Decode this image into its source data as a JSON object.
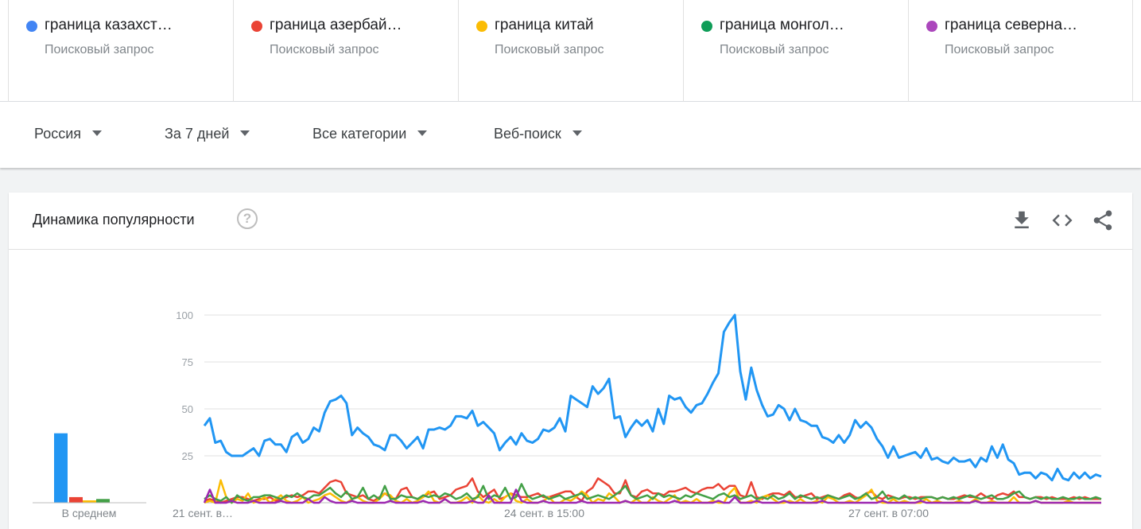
{
  "terms": [
    {
      "name": "граница казахст…",
      "sub": "Поисковый запрос",
      "color": "#4285f4"
    },
    {
      "name": "граница азербай…",
      "sub": "Поисковый запрос",
      "color": "#ea4335"
    },
    {
      "name": "граница китай",
      "sub": "Поисковый запрос",
      "color": "#fbbc04"
    },
    {
      "name": "граница монгол…",
      "sub": "Поисковый запрос",
      "color": "#0f9d58"
    },
    {
      "name": "граница северна…",
      "sub": "Поисковый запрос",
      "color": "#ab47bc"
    }
  ],
  "filters": {
    "region": "Россия",
    "period": "За 7 дней",
    "category": "Все категории",
    "search_type": "Веб-поиск"
  },
  "card": {
    "title": "Динамика популярности",
    "help_icon": "?",
    "icons": [
      "download-icon",
      "embed-code-icon",
      "share-icon"
    ]
  },
  "chart_data": {
    "type": "line",
    "title": "",
    "ylim": [
      0,
      100
    ],
    "yticks": [
      25,
      50,
      75,
      100
    ],
    "x_labels": [
      "21 сент. в…",
      "24 сент. в 15:00",
      "27 сент. в 07:00"
    ],
    "average_label": "В среднем",
    "averages": [
      {
        "color": "#2196f3",
        "value": 37
      },
      {
        "color": "#ea4335",
        "value": 3
      },
      {
        "color": "#fbbc04",
        "value": 1
      },
      {
        "color": "#43a047",
        "value": 2
      },
      {
        "color": "#9c27b0",
        "value": 0
      }
    ],
    "series": [
      {
        "color": "#2196f3",
        "values": [
          41,
          45,
          32,
          33,
          27,
          25,
          25,
          25,
          27,
          29,
          25,
          33,
          34,
          31,
          31,
          27,
          35,
          37,
          32,
          34,
          40,
          38,
          48,
          54,
          55,
          57,
          53,
          36,
          40,
          37,
          35,
          31,
          30,
          28,
          36,
          36,
          33,
          29,
          32,
          35,
          29,
          39,
          39,
          40,
          39,
          41,
          46,
          46,
          45,
          49,
          41,
          43,
          40,
          37,
          28,
          32,
          35,
          31,
          37,
          33,
          32,
          34,
          39,
          38,
          40,
          45,
          38,
          57,
          55,
          53,
          51,
          62,
          58,
          61,
          66,
          45,
          46,
          35,
          40,
          44,
          41,
          44,
          38,
          50,
          42,
          57,
          55,
          56,
          51,
          48,
          52,
          53,
          58,
          64,
          69,
          91,
          96,
          100,
          70,
          55,
          72,
          60,
          52,
          46,
          47,
          52,
          50,
          44,
          50,
          44,
          43,
          41,
          41,
          35,
          34,
          32,
          36,
          32,
          36,
          44,
          40,
          43,
          40,
          34,
          30,
          24,
          30,
          24,
          25,
          26,
          27,
          24,
          29,
          23,
          24,
          22,
          21,
          24,
          22,
          22,
          23,
          19,
          24,
          22,
          30,
          24,
          31,
          23,
          21,
          15,
          16,
          16,
          13,
          16,
          15,
          12,
          18,
          13,
          12,
          16,
          13,
          16,
          13,
          15,
          14
        ],
        "dense": true
      },
      {
        "color": "#ea4335",
        "values": [
          1,
          2,
          1,
          0,
          1,
          2,
          3,
          3,
          2,
          1,
          2,
          2,
          3,
          1,
          2,
          3,
          4,
          3,
          4,
          6,
          6,
          5,
          8,
          11,
          12,
          11,
          5,
          4,
          3,
          4,
          2,
          1,
          3,
          5,
          3,
          2,
          7,
          8,
          3,
          2,
          3,
          5,
          6,
          2,
          3,
          4,
          7,
          8,
          9,
          13,
          6,
          3,
          5,
          7,
          2,
          3,
          5,
          4,
          3,
          3,
          4,
          5,
          3,
          3,
          4,
          5,
          6,
          6,
          3,
          1,
          6,
          8,
          13,
          11,
          9,
          5,
          5,
          12,
          4,
          3,
          6,
          7,
          5,
          5,
          4,
          6,
          6,
          7,
          8,
          6,
          5,
          7,
          8,
          8,
          10,
          7,
          9,
          9,
          4,
          3,
          11,
          3,
          2,
          4,
          5,
          5,
          4,
          6,
          3,
          3,
          4,
          5,
          2,
          3,
          4,
          3,
          2,
          4,
          5,
          3,
          2,
          5,
          6,
          3,
          2,
          4,
          3,
          2,
          3,
          3,
          2,
          3,
          3,
          3,
          2,
          3,
          2,
          2,
          3,
          4,
          3,
          3,
          5,
          3,
          2,
          4,
          5,
          4,
          6,
          3,
          3,
          2,
          3,
          3,
          2,
          3,
          2,
          2,
          2,
          3,
          2,
          3,
          2,
          2,
          2
        ],
        "dense": false
      },
      {
        "color": "#fbbc04",
        "values": [
          0,
          1,
          0,
          12,
          3,
          0,
          2,
          1,
          5,
          0,
          1,
          3,
          0,
          2,
          4,
          1,
          0,
          1,
          3,
          0,
          1,
          2,
          4,
          5,
          3,
          1,
          0,
          2,
          3,
          1,
          0,
          0,
          2,
          5,
          4,
          1,
          0,
          2,
          0,
          1,
          3,
          6,
          1,
          0,
          2,
          0,
          0,
          1,
          3,
          0,
          4,
          1,
          0,
          2,
          0,
          3,
          5,
          1,
          0,
          2,
          0,
          0,
          1,
          3,
          0,
          0,
          2,
          1,
          3,
          6,
          4,
          0,
          2,
          1,
          5,
          3,
          0,
          1,
          0,
          2,
          0,
          0,
          3,
          1,
          0,
          2,
          4,
          0,
          1,
          0,
          2,
          0,
          0,
          1,
          0,
          0,
          5,
          8,
          0,
          0,
          1,
          0,
          3,
          4,
          2,
          0,
          0,
          1,
          0,
          2,
          0,
          0,
          1,
          0,
          3,
          2,
          0,
          0,
          1,
          0,
          2,
          4,
          7,
          1,
          0,
          0,
          2,
          0,
          1,
          0,
          0,
          0,
          2,
          0,
          1,
          0,
          0,
          0,
          1,
          0,
          0,
          2,
          0,
          0,
          1,
          0,
          0,
          0,
          3,
          0,
          0,
          0,
          1,
          0,
          0,
          0,
          0,
          0,
          1,
          0,
          0,
          0,
          0,
          0,
          0
        ],
        "dense": false
      },
      {
        "color": "#43a047",
        "values": [
          2,
          4,
          2,
          1,
          3,
          0,
          4,
          2,
          1,
          3,
          3,
          4,
          4,
          3,
          2,
          4,
          3,
          5,
          3,
          2,
          4,
          4,
          6,
          8,
          5,
          3,
          6,
          2,
          3,
          8,
          2,
          4,
          2,
          9,
          2,
          2,
          4,
          3,
          3,
          2,
          4,
          3,
          4,
          3,
          5,
          4,
          2,
          3,
          5,
          2,
          3,
          9,
          2,
          4,
          3,
          8,
          2,
          3,
          10,
          4,
          2,
          3,
          4,
          2,
          3,
          4,
          2,
          3,
          4,
          5,
          2,
          3,
          4,
          3,
          2,
          4,
          6,
          9,
          4,
          2,
          3,
          4,
          2,
          5,
          3,
          4,
          3,
          2,
          4,
          3,
          5,
          4,
          3,
          2,
          4,
          5,
          3,
          4,
          2,
          3,
          4,
          2,
          3,
          2,
          4,
          2,
          3,
          5,
          2,
          4,
          3,
          2,
          3,
          2,
          4,
          3,
          2,
          3,
          4,
          2,
          3,
          5,
          2,
          3,
          6,
          2,
          3,
          2,
          4,
          2,
          3,
          2,
          3,
          3,
          2,
          3,
          2,
          3,
          2,
          3,
          4,
          3,
          2,
          3,
          4,
          2,
          2,
          3,
          5,
          6,
          3,
          2,
          3,
          2,
          3,
          2,
          2,
          3,
          2,
          2,
          3,
          2,
          2,
          3,
          2
        ],
        "dense": false
      },
      {
        "color": "#9c27b0",
        "values": [
          0,
          7,
          0,
          0,
          0,
          1,
          0,
          0,
          0,
          1,
          0,
          0,
          0,
          0,
          1,
          0,
          0,
          0,
          0,
          2,
          0,
          0,
          3,
          1,
          0,
          0,
          0,
          1,
          0,
          0,
          0,
          0,
          0,
          0,
          1,
          0,
          0,
          0,
          0,
          0,
          1,
          0,
          0,
          0,
          2,
          0,
          0,
          0,
          0,
          1,
          0,
          0,
          4,
          0,
          0,
          0,
          0,
          7,
          1,
          0,
          0,
          0,
          1,
          0,
          0,
          0,
          0,
          0,
          0,
          1,
          0,
          0,
          0,
          0,
          0,
          0,
          0,
          1,
          0,
          0,
          0,
          0,
          0,
          0,
          0,
          0,
          1,
          0,
          0,
          0,
          0,
          0,
          0,
          0,
          1,
          0,
          0,
          3,
          0,
          0,
          0,
          1,
          0,
          0,
          0,
          0,
          1,
          0,
          0,
          0,
          0,
          0,
          0,
          1,
          0,
          0,
          0,
          0,
          0,
          0,
          0,
          0,
          0,
          0,
          1,
          0,
          0,
          0,
          0,
          0,
          0,
          1,
          0,
          0,
          0,
          0,
          0,
          0,
          0,
          0,
          0,
          1,
          0,
          0,
          0,
          0,
          0,
          0,
          0,
          0,
          0,
          0,
          1,
          0,
          0,
          0,
          0,
          0,
          0,
          0,
          0,
          0,
          0,
          0,
          0
        ],
        "dense": false
      }
    ]
  }
}
